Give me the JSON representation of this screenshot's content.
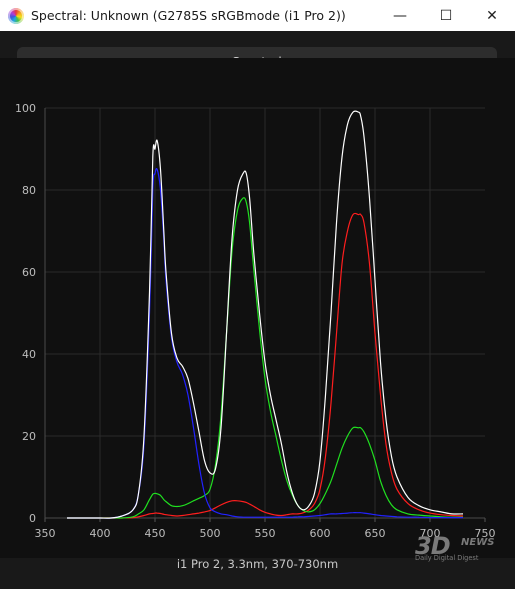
{
  "window": {
    "title": "Spectral: Unknown (G2785S sRGBmode (i1 Pro 2))",
    "controls": {
      "minimize": "—",
      "maximize": "☐",
      "close": "✕"
    }
  },
  "tab": {
    "label": "Spectral"
  },
  "chart_data": {
    "type": "line",
    "title": "",
    "xlabel": "",
    "ylabel": "",
    "xlim": [
      350,
      750
    ],
    "ylim": [
      0,
      100
    ],
    "xticks": [
      350,
      400,
      450,
      500,
      550,
      600,
      650,
      700,
      750
    ],
    "yticks": [
      0,
      20,
      40,
      60,
      80,
      100
    ],
    "grid": true,
    "x": [
      370,
      380,
      390,
      400,
      410,
      420,
      430,
      435,
      440,
      445,
      448,
      450,
      452,
      455,
      458,
      460,
      465,
      470,
      475,
      480,
      485,
      490,
      495,
      500,
      505,
      510,
      515,
      520,
      525,
      530,
      533,
      536,
      540,
      545,
      550,
      555,
      560,
      565,
      570,
      575,
      580,
      585,
      590,
      595,
      600,
      605,
      610,
      615,
      620,
      625,
      630,
      635,
      637,
      640,
      645,
      650,
      655,
      660,
      665,
      670,
      680,
      690,
      700,
      710,
      720,
      730
    ],
    "series": [
      {
        "color": "#ffffff",
        "values": [
          0,
          0,
          0,
          0,
          0,
          0.5,
          2,
          6,
          20,
          55,
          88,
          90,
          92,
          85,
          70,
          60,
          45,
          39,
          37,
          34,
          28,
          21,
          14,
          11,
          12,
          22,
          45,
          68,
          80,
          84,
          84,
          78,
          64,
          50,
          38,
          30,
          24,
          18,
          11,
          6,
          3,
          2,
          3,
          6,
          14,
          30,
          50,
          72,
          88,
          96,
          99,
          99,
          98,
          93,
          78,
          58,
          38,
          24,
          15,
          10,
          5,
          3,
          2,
          1.5,
          1,
          1
        ]
      },
      {
        "color": "#ff1e1e",
        "values": [
          0,
          0,
          0,
          0,
          0,
          0,
          0.1,
          0.3,
          0.6,
          1,
          1.1,
          1.2,
          1.2,
          1.1,
          0.9,
          0.8,
          0.6,
          0.5,
          0.6,
          0.8,
          1,
          1.2,
          1.5,
          1.8,
          2.5,
          3.2,
          3.8,
          4.2,
          4.2,
          4,
          3.8,
          3.4,
          2.8,
          2,
          1.4,
          1,
          0.7,
          0.6,
          0.8,
          1,
          1,
          1.3,
          2,
          3.5,
          7,
          15,
          28,
          45,
          62,
          70,
          74,
          74,
          74,
          72,
          62,
          45,
          30,
          18,
          11,
          7,
          3.5,
          2,
          1.2,
          0.8,
          0.6,
          0.5
        ]
      },
      {
        "color": "#20e020",
        "values": [
          0,
          0,
          0,
          0,
          0,
          0,
          0.3,
          1,
          2,
          4.5,
          5.8,
          6,
          5.9,
          5.5,
          4.5,
          4,
          3,
          2.8,
          3,
          3.5,
          4.2,
          4.8,
          5.5,
          7,
          13,
          25,
          45,
          65,
          75,
          78,
          77,
          72,
          60,
          46,
          34,
          26,
          20,
          14,
          9,
          5.5,
          3,
          1.8,
          1.5,
          2,
          3.5,
          6,
          9,
          13,
          17,
          20,
          22,
          22,
          22,
          21,
          18,
          14,
          9,
          5.5,
          3.2,
          2,
          1,
          0.7,
          0.5,
          0.3,
          0.2,
          0.2
        ]
      },
      {
        "color": "#2222ff",
        "values": [
          0,
          0,
          0,
          0,
          0,
          0.5,
          2,
          6,
          18,
          50,
          80,
          84,
          85,
          80,
          68,
          58,
          44,
          38,
          35,
          30,
          22,
          13,
          6,
          2.5,
          1.5,
          1,
          0.8,
          0.5,
          0.3,
          0.2,
          0.2,
          0.2,
          0.2,
          0.2,
          0.2,
          0.2,
          0.2,
          0.2,
          0.2,
          0.2,
          0.3,
          0.3,
          0.4,
          0.5,
          0.6,
          0.8,
          1,
          1,
          1.1,
          1.2,
          1.3,
          1.3,
          1.3,
          1.2,
          1,
          0.8,
          0.6,
          0.5,
          0.4,
          0.3,
          0.2,
          0.2,
          0.1,
          0.1,
          0.1,
          0.1
        ]
      }
    ]
  },
  "caption": "i1 Pro 2, 3.3nm, 370-730nm",
  "watermark": {
    "main": "3D",
    "news": "NEWS",
    "sub": "Daily Digital Digest"
  }
}
